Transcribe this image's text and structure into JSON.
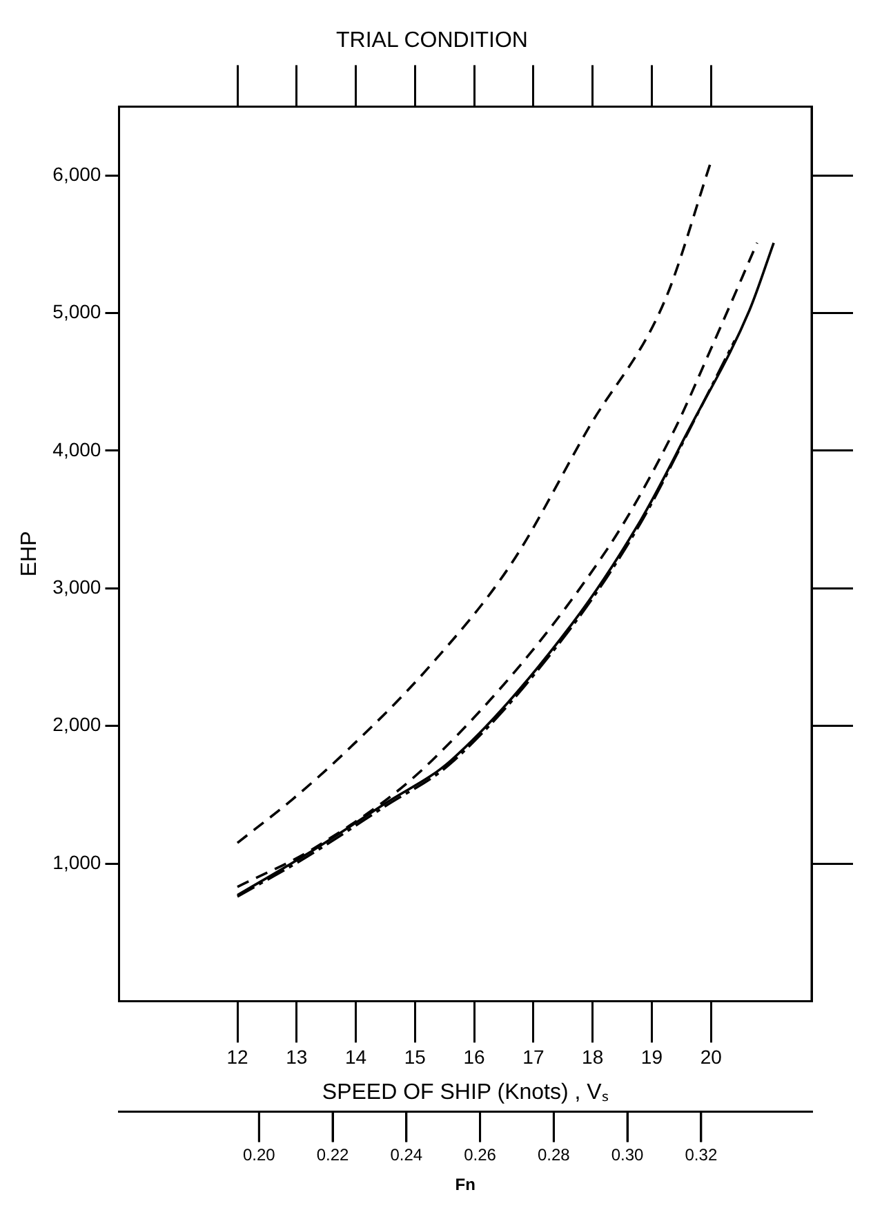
{
  "chart_data": {
    "type": "line",
    "title": "TRIAL CONDITION",
    "xlabel": "SPEED OF SHIP (Knots) , Vₛ",
    "ylabel": "EHP",
    "x2label": "Fn",
    "xlim": [
      10,
      21.7
    ],
    "xticks": [
      12,
      13,
      14,
      15,
      16,
      17,
      18,
      19,
      20
    ],
    "x2lim": [
      0.162,
      0.35
    ],
    "x2ticks": [
      {
        "value": 0.2,
        "label": "0.20"
      },
      {
        "value": 0.22,
        "label": "0.22"
      },
      {
        "value": 0.24,
        "label": "0.24"
      },
      {
        "value": 0.26,
        "label": "0.26"
      },
      {
        "value": 0.28,
        "label": "0.28"
      },
      {
        "value": 0.3,
        "label": "0.30"
      },
      {
        "value": 0.32,
        "label": "0.32"
      }
    ],
    "ylim": [
      0,
      6500
    ],
    "yticks": [
      {
        "value": 1000,
        "label": "1,000"
      },
      {
        "value": 2000,
        "label": "2,000"
      },
      {
        "value": 3000,
        "label": "3,000"
      },
      {
        "value": 4000,
        "label": "4,000"
      },
      {
        "value": 5000,
        "label": "5,000"
      },
      {
        "value": 6000,
        "label": "6,000"
      }
    ],
    "grid": false,
    "legend": false,
    "marker": "none",
    "series": [
      {
        "color": "#000000",
        "line_style": "dashed",
        "x": [
          12,
          12.94,
          13.8,
          15.22,
          16.63,
          17.94,
          19.22,
          20
        ],
        "values": [
          1150,
          1470,
          1800,
          2420,
          3180,
          4170,
          5090,
          6100
        ]
      },
      {
        "color": "#000000",
        "line_style": "dashed",
        "x": [
          12,
          13.33,
          15.29,
          18.24,
          19.37,
          20,
          20.78
        ],
        "values": [
          830,
          1120,
          1750,
          3280,
          4140,
          4740,
          5510
        ]
      },
      {
        "color": "#000000",
        "line_style": "solid",
        "x": [
          12,
          13.18,
          14.51,
          15.61,
          17.65,
          18.82,
          19.61,
          20.65,
          21.06
        ],
        "values": [
          770,
          1070,
          1440,
          1750,
          2740,
          3500,
          4140,
          5020,
          5510
        ]
      },
      {
        "color": "#000000",
        "line_style": "dotted",
        "x": [
          12,
          13.18,
          14.51,
          15.61,
          17.65,
          18.82,
          19.61,
          20.4
        ],
        "values": [
          760,
          1050,
          1420,
          1730,
          2720,
          3480,
          4130,
          4800
        ]
      }
    ]
  }
}
